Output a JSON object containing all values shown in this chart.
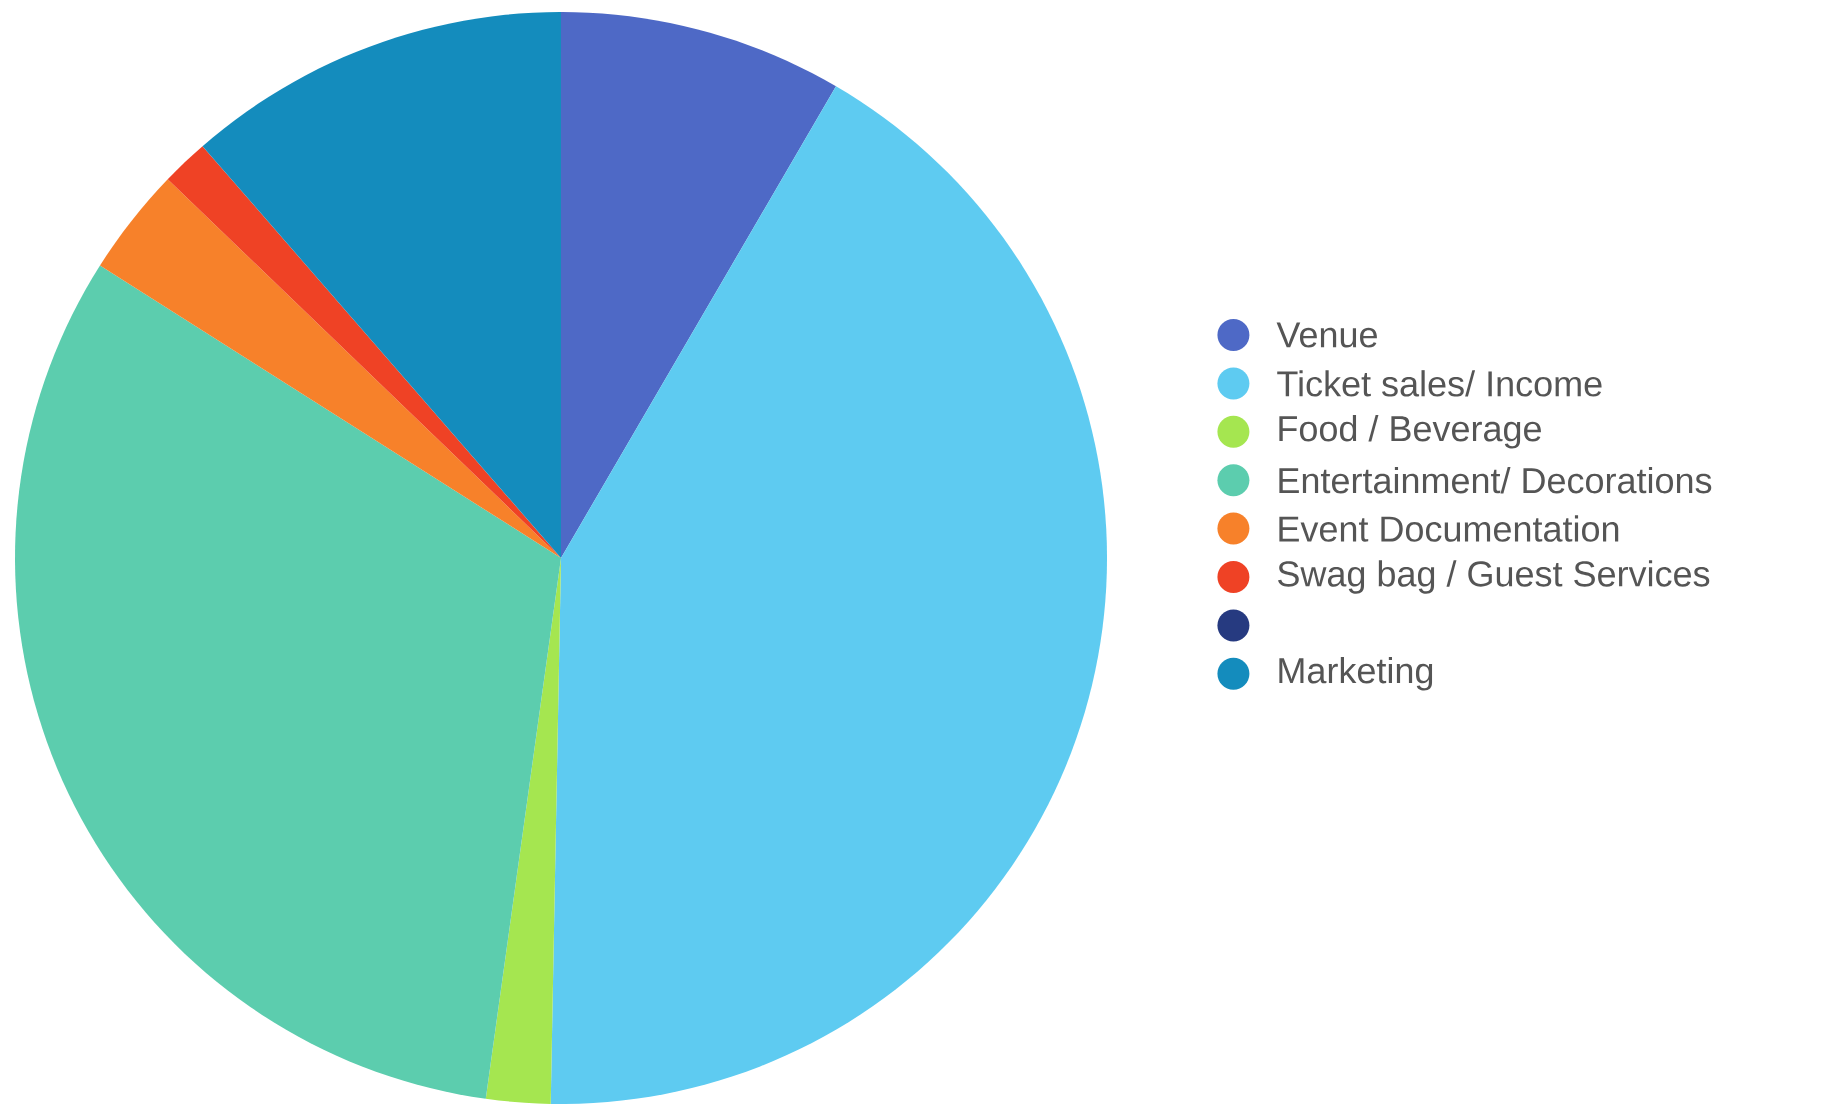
{
  "chart_data": {
    "type": "pie",
    "categories": [
      "Venue",
      "Ticket sales/ Income",
      "Food / Beverage",
      "Entertainment/ Decorations",
      "Event Documentation",
      "Swag bag / Guest Services",
      null,
      "Marketing"
    ],
    "values": [
      8.4,
      41.9,
      1.9,
      31.8,
      3.2,
      1.4,
      0,
      11.4
    ],
    "colors": [
      "#4e69c6",
      "#5ecbf1",
      "#a5e650",
      "#5ccdae",
      "#f7812a",
      "#ef4225",
      "#263a80",
      "#148cbd"
    ],
    "legend": "right"
  }
}
